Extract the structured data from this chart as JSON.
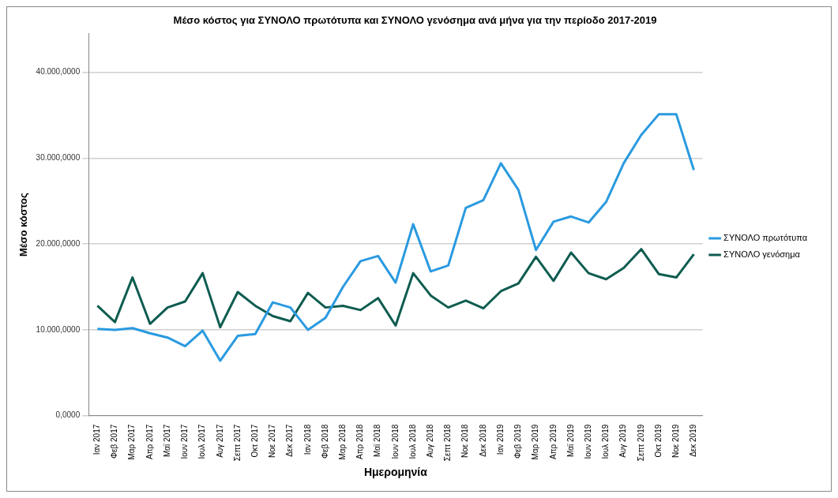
{
  "chart_data": {
    "type": "line",
    "title": "Μέσο κόστος για ΣΥΝΟΛΟ πρωτότυπα και ΣΥΝΟΛΟ γενόσημα ανά μήνα για την περίοδο 2017-2019",
    "xlabel": "Ημερομηνία",
    "ylabel": "Μέσο κόστος",
    "categories": [
      "Ιαν 2017",
      "Φεβ 2017",
      "Μαρ 2017",
      "Απρ 2017",
      "Μαϊ 2017",
      "Ιουν 2017",
      "Ιουλ 2017",
      "Αυγ 2017",
      "Σεπτ 2017",
      "Οκτ 2017",
      "Νοε 2017",
      "Δεκ 2017",
      "Ιαν 2018",
      "Φεβ 2018",
      "Μαρ 2018",
      "Απρ 2018",
      "Μαϊ 2018",
      "Ιουν 2018",
      "Ιουλ 2018",
      "Αυγ 2018",
      "Σεπτ 2018",
      "Νοε 2018",
      "Δεκ 2018",
      "Ιαν 2019",
      "Φεβ 2019",
      "Μαρ 2019",
      "Απρ 2019",
      "Μαϊ 2019",
      "Ιουν 2019",
      "Ιουλ 2019",
      "Αυγ 2019",
      "Σεπτ 2019",
      "Οκτ 2019",
      "Νοε 2019",
      "Δεκ 2019"
    ],
    "series": [
      {
        "name": "ΣΥΝΟΛΟ πρωτότυπα",
        "color": "#2a9ae0",
        "values": [
          10100,
          10000,
          10200,
          9600,
          9100,
          8100,
          9900,
          6400,
          9300,
          9500,
          13200,
          12600,
          10000,
          11400,
          15000,
          18000,
          18600,
          15500,
          22300,
          16800,
          17500,
          24200,
          25100,
          29400,
          26300,
          19300,
          22600,
          23200,
          22500,
          24900,
          29400,
          32700,
          35100,
          35100,
          28600
        ]
      },
      {
        "name": "ΣΥΝΟΛΟ γενόσημα",
        "color": "#0e5c50",
        "values": [
          12800,
          10900,
          16100,
          10700,
          12600,
          13300,
          16600,
          10300,
          14400,
          12800,
          11600,
          11000,
          14300,
          12600,
          12800,
          12300,
          13700,
          10500,
          16600,
          14000,
          12600,
          13400,
          12500,
          14500,
          15400,
          18500,
          15700,
          19000,
          16600,
          15900,
          17200,
          19400,
          16500,
          16100,
          18800
        ]
      }
    ],
    "ylim": [
      0,
      44500
    ],
    "yticks": [
      {
        "value": 0,
        "label": "0,0000"
      },
      {
        "value": 10000,
        "label": "10.000,0000"
      },
      {
        "value": 20000,
        "label": "20.000,0000"
      },
      {
        "value": 30000,
        "label": "30.000,0000"
      },
      {
        "value": 40000,
        "label": "40.000,0000"
      }
    ],
    "grid": "y",
    "legend": "right",
    "marker": "none",
    "line_style": "solid"
  }
}
